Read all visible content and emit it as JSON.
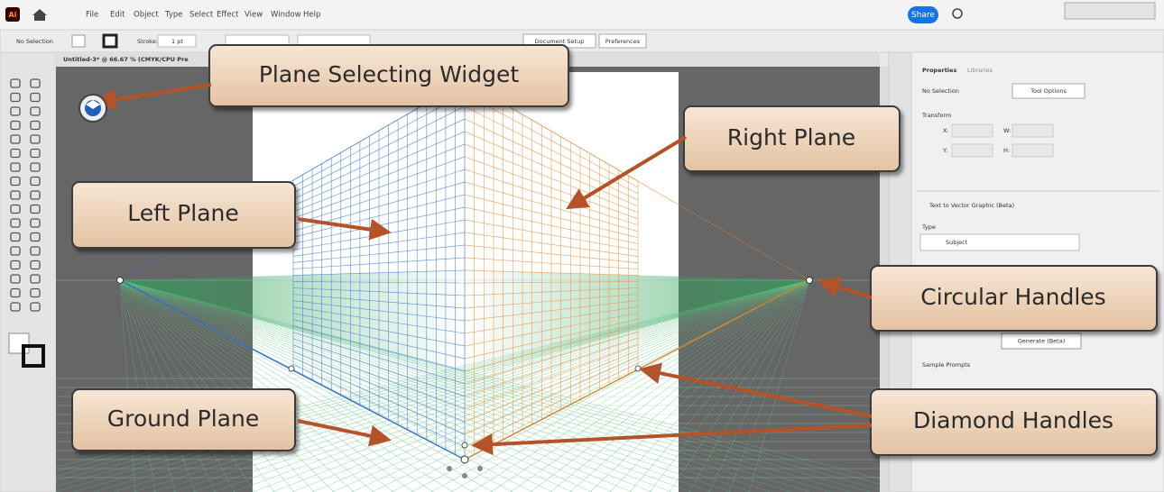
{
  "app_bar": {
    "logo": "Ai",
    "menu": [
      "File",
      "Edit",
      "Object",
      "Type",
      "Select",
      "Effect",
      "View",
      "Window",
      "Help"
    ],
    "share": "Share"
  },
  "control_bar": {
    "selection": "No Selection",
    "stroke_label": "Stroke:",
    "stroke_value": "1 pt",
    "document_setup": "Document Setup",
    "preferences": "Preferences"
  },
  "document_tab": "Untitled-3* @ 66.67 % (CMYK/CPU Pre",
  "properties_panel": {
    "tabs": [
      "Properties",
      "Libraries"
    ],
    "selection": "No Selection",
    "tool_options": "Tool Options",
    "transform": "Transform",
    "fields": [
      "X:",
      "Y:",
      "W:",
      "H:"
    ],
    "section": "Text to Vector Graphic (Beta)",
    "type_label": "Type",
    "type_value": "Subject",
    "generate": "Generate (Beta)",
    "sample_prompts": "Sample Prompts"
  },
  "callouts": [
    "Plane Selecting Widget",
    "Right Plane",
    "Left Plane",
    "Circular Handles",
    "Ground Plane",
    "Diamond Handles"
  ]
}
